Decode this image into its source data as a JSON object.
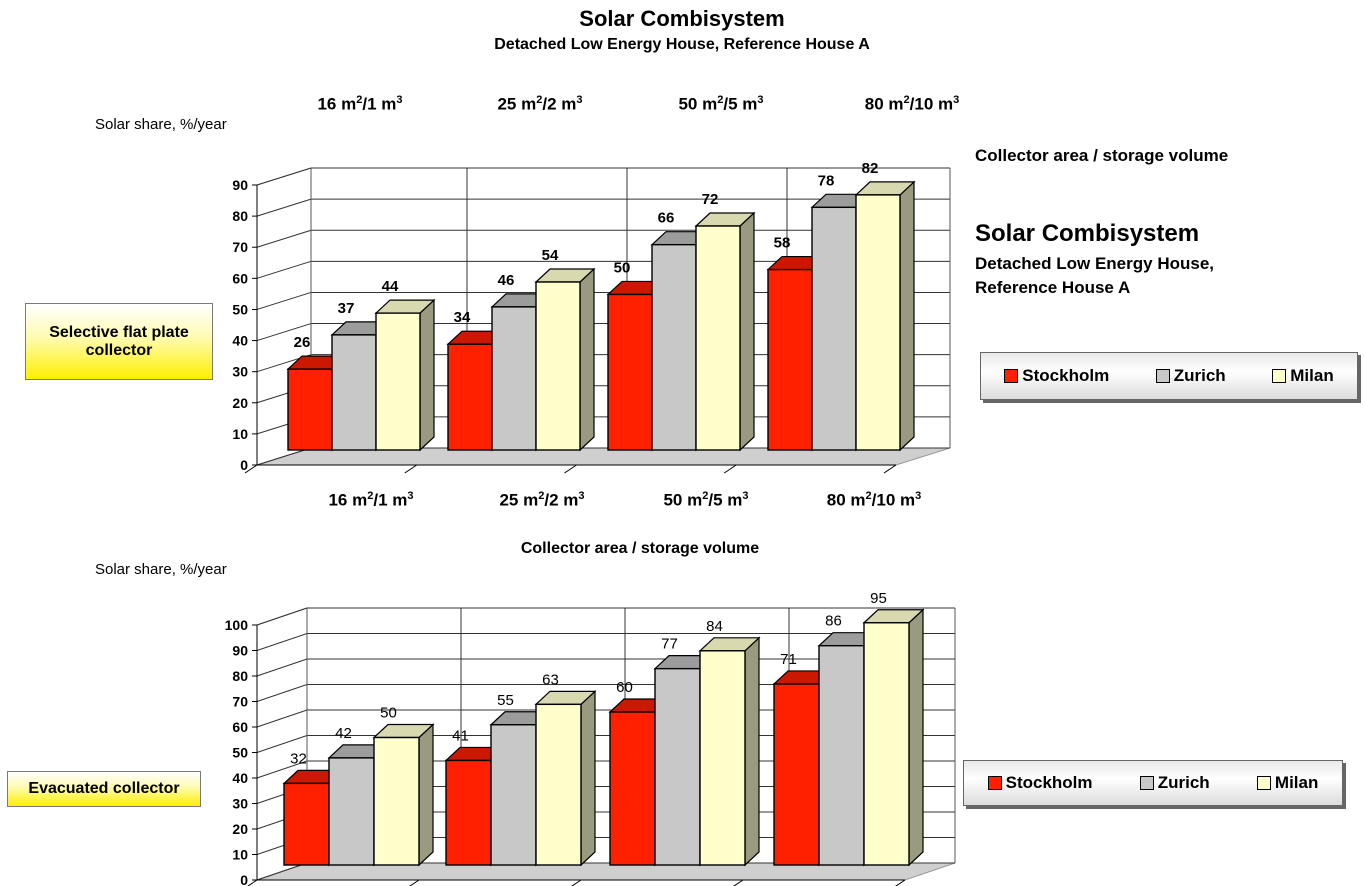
{
  "page": {
    "title": "Solar Combisystem",
    "subtitle": "Detached Low Energy House, Reference House A"
  },
  "side_panel": {
    "axis_title": "Collector area / storage volume",
    "title": "Solar Combisystem",
    "subtitle": "Detached Low Energy House, Reference House A"
  },
  "legend": {
    "items": [
      "Stockholm",
      "Zurich",
      "Milan"
    ]
  },
  "colors": {
    "Stockholm": "#ff2000",
    "Zurich": "#c8c8c8",
    "Milan": "#ffffcc"
  },
  "chart_data": [
    {
      "type": "bar",
      "collector_label": "Selective flat plate collector",
      "ylabel": "Solar share, %/year",
      "xlabel": "",
      "categories": [
        {
          "area": "16",
          "volume": "1"
        },
        {
          "area": "25",
          "volume": "2"
        },
        {
          "area": "50",
          "volume": "5"
        },
        {
          "area": "80",
          "volume": "10"
        }
      ],
      "category_labels": [
        "16 m2/1 m3",
        "25 m2/2 m3",
        "50 m2/5 m3",
        "80 m2/10 m3"
      ],
      "series": [
        {
          "name": "Stockholm",
          "values": [
            26,
            34,
            50,
            58
          ]
        },
        {
          "name": "Zurich",
          "values": [
            37,
            46,
            66,
            78
          ]
        },
        {
          "name": "Milan",
          "values": [
            44,
            54,
            72,
            82
          ]
        }
      ],
      "ylim": [
        0,
        90
      ],
      "yticks": [
        0,
        10,
        20,
        30,
        40,
        50,
        60,
        70,
        80,
        90
      ],
      "grid": true,
      "legend_position": "right"
    },
    {
      "type": "bar",
      "collector_label": "Evacuated collector",
      "ylabel": "Solar share, %/year",
      "xlabel": "Collector area / storage volume",
      "categories": [
        {
          "area": "16",
          "volume": "1"
        },
        {
          "area": "25",
          "volume": "2"
        },
        {
          "area": "50",
          "volume": "5"
        },
        {
          "area": "80",
          "volume": "10"
        }
      ],
      "category_labels": [
        "16 m2/1 m3",
        "25 m2/2 m3",
        "50 m2/5 m3",
        "80 m2/10 m3"
      ],
      "series": [
        {
          "name": "Stockholm",
          "values": [
            32,
            41,
            60,
            71
          ]
        },
        {
          "name": "Zurich",
          "values": [
            42,
            55,
            77,
            86
          ]
        },
        {
          "name": "Milan",
          "values": [
            50,
            63,
            84,
            95
          ]
        }
      ],
      "ylim": [
        0,
        100
      ],
      "yticks": [
        0,
        10,
        20,
        30,
        40,
        50,
        60,
        70,
        80,
        90,
        100
      ],
      "grid": true,
      "legend_position": "right"
    }
  ]
}
